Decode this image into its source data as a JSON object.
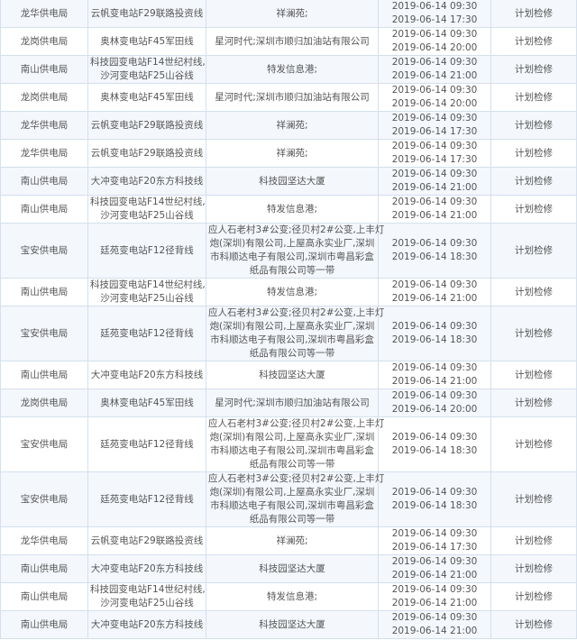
{
  "rows": [
    {
      "bureau": "龙华供电局",
      "line": [
        "云帆变电站F29联路投资线"
      ],
      "area": [
        "祥澜苑;"
      ],
      "start": "2019-06-14 09:30",
      "end": "2019-06-14 17:30",
      "type": "计划检修"
    },
    {
      "bureau": "龙岗供电局",
      "line": [
        "奥林变电站F45军田线"
      ],
      "area": [
        "星河时代;深圳市顺归加油站有限公司"
      ],
      "start": "2019-06-14 09:30",
      "end": "2019-06-14 20:00",
      "type": "计划检修"
    },
    {
      "bureau": "南山供电局",
      "line": [
        "科技园变电站F14世纪村线,",
        "沙河变电站F25山谷线"
      ],
      "area": [
        "特发信息港;"
      ],
      "start": "2019-06-14 09:30",
      "end": "2019-06-14 21:00",
      "type": "计划检修"
    },
    {
      "bureau": "龙岗供电局",
      "line": [
        "奥林变电站F45军田线"
      ],
      "area": [
        "星河时代;深圳市顺归加油站有限公司"
      ],
      "start": "2019-06-14 09:30",
      "end": "2019-06-14 20:00",
      "type": "计划检修"
    },
    {
      "bureau": "龙华供电局",
      "line": [
        "云帆变电站F29联路投资线"
      ],
      "area": [
        "祥澜苑;"
      ],
      "start": "2019-06-14 09:30",
      "end": "2019-06-14 17:30",
      "type": "计划检修"
    },
    {
      "bureau": "龙华供电局",
      "line": [
        "云帆变电站F29联路投资线"
      ],
      "area": [
        "祥澜苑;"
      ],
      "start": "2019-06-14 09:30",
      "end": "2019-06-14 17:30",
      "type": "计划检修"
    },
    {
      "bureau": "南山供电局",
      "line": [
        "大冲变电站F20东方科技线"
      ],
      "area": [
        "科技园坚达大厦"
      ],
      "start": "2019-06-14 09:30",
      "end": "2019-06-14 21:00",
      "type": "计划检修"
    },
    {
      "bureau": "南山供电局",
      "line": [
        "科技园变电站F14世纪村线,",
        "沙河变电站F25山谷线"
      ],
      "area": [
        "特发信息港;"
      ],
      "start": "2019-06-14 09:30",
      "end": "2019-06-14 21:00",
      "type": "计划检修"
    },
    {
      "bureau": "宝安供电局",
      "line": [
        "廷苑变电站F12径背线"
      ],
      "area": [
        "应人石老村3#公变;径贝村2#公变,上丰灯",
        "炮(深圳)有限公司,上屋高永实业厂,深圳",
        "市科顺达电子有限公司,深圳市粤昌彩盒",
        "纸品有限公司等一带"
      ],
      "start": "2019-06-14 09:30",
      "end": "2019-06-14 18:30",
      "type": "计划检修"
    },
    {
      "bureau": "南山供电局",
      "line": [
        "科技园变电站F14世纪村线,",
        "沙河变电站F25山谷线"
      ],
      "area": [
        "特发信息港;"
      ],
      "start": "2019-06-14 09:30",
      "end": "2019-06-14 21:00",
      "type": "计划检修"
    },
    {
      "bureau": "宝安供电局",
      "line": [
        "廷苑变电站F12径背线"
      ],
      "area": [
        "应人石老村3#公变;径贝村2#公变,上丰灯",
        "炮(深圳)有限公司,上屋高永实业厂,深圳",
        "市科顺达电子有限公司,深圳市粤昌彩盒",
        "纸品有限公司等一带"
      ],
      "start": "2019-06-14 09:30",
      "end": "2019-06-14 18:30",
      "type": "计划检修"
    },
    {
      "bureau": "南山供电局",
      "line": [
        "大冲变电站F20东方科技线"
      ],
      "area": [
        "科技园坚达大厦"
      ],
      "start": "2019-06-14 09:30",
      "end": "2019-06-14 21:00",
      "type": "计划检修"
    },
    {
      "bureau": "龙岗供电局",
      "line": [
        "奥林变电站F45军田线"
      ],
      "area": [
        "星河时代;深圳市顺归加油站有限公司"
      ],
      "start": "2019-06-14 09:30",
      "end": "2019-06-14 20:00",
      "type": "计划检修"
    },
    {
      "bureau": "宝安供电局",
      "line": [
        "廷苑变电站F12径背线"
      ],
      "area": [
        "应人石老村3#公变;径贝村2#公变,上丰灯",
        "炮(深圳)有限公司,上屋高永实业厂,深圳",
        "市科顺达电子有限公司,深圳市粤昌彩盒",
        "纸品有限公司等一带"
      ],
      "start": "2019-06-14 09:30",
      "end": "2019-06-14 18:30",
      "type": "计划检修"
    },
    {
      "bureau": "宝安供电局",
      "line": [
        "廷苑变电站F12径背线"
      ],
      "area": [
        "应人石老村3#公变;径贝村2#公变,上丰灯",
        "炮(深圳)有限公司,上屋高永实业厂,深圳",
        "市科顺达电子有限公司,深圳市粤昌彩盒",
        "纸品有限公司等一带"
      ],
      "start": "2019-06-14 09:30",
      "end": "2019-06-14 18:30",
      "type": "计划检修"
    },
    {
      "bureau": "龙华供电局",
      "line": [
        "云帆变电站F29联路投资线"
      ],
      "area": [
        "祥澜苑;"
      ],
      "start": "2019-06-14 09:30",
      "end": "2019-06-14 17:30",
      "type": "计划检修"
    },
    {
      "bureau": "南山供电局",
      "line": [
        "大冲变电站F20东方科技线"
      ],
      "area": [
        "科技园坚达大厦"
      ],
      "start": "2019-06-14 09:30",
      "end": "2019-06-14 21:00",
      "type": "计划检修"
    },
    {
      "bureau": "南山供电局",
      "line": [
        "科技园变电站F14世纪村线,",
        "沙河变电站F25山谷线"
      ],
      "area": [
        "特发信息港;"
      ],
      "start": "2019-06-14 09:30",
      "end": "2019-06-14 21:00",
      "type": "计划检修"
    },
    {
      "bureau": "南山供电局",
      "line": [
        "大冲变电站F20东方科技线"
      ],
      "area": [
        "科技园坚达大厦"
      ],
      "start": "2019-06-14 09:30",
      "end": "2019-06-14 21:00",
      "type": "计划检修"
    }
  ]
}
